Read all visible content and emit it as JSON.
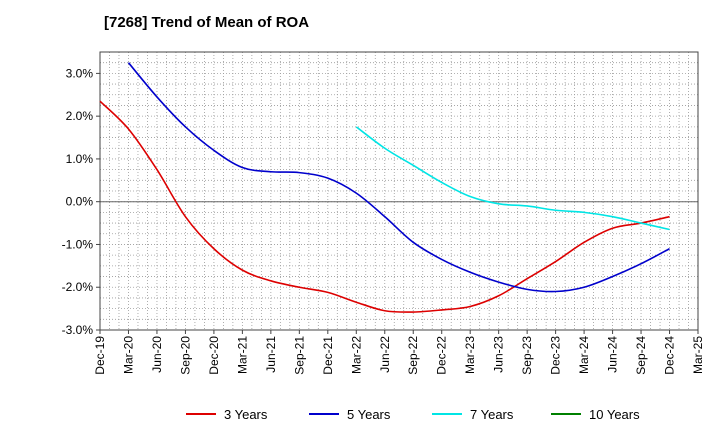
{
  "chart_data": {
    "type": "line",
    "title": "[7268]  Trend of Mean of ROA",
    "xlabel": "",
    "ylabel": "",
    "x": [
      "Dec-19",
      "Mar-20",
      "Jun-20",
      "Sep-20",
      "Dec-20",
      "Mar-21",
      "Jun-21",
      "Sep-21",
      "Dec-21",
      "Mar-22",
      "Jun-22",
      "Sep-22",
      "Dec-22",
      "Mar-23",
      "Jun-23",
      "Sep-23",
      "Dec-23",
      "Mar-24",
      "Jun-24",
      "Sep-24",
      "Dec-24",
      "Mar-25"
    ],
    "y_ticks": [
      "3.0%",
      "2.0%",
      "1.0%",
      "0.0%",
      "-1.0%",
      "-2.0%",
      "-3.0%"
    ],
    "ylim": [
      -3.0,
      3.5
    ],
    "grid": true,
    "legend_position": "bottom",
    "series": [
      {
        "name": "3 Years",
        "color": "#dd0000",
        "values": [
          2.35,
          1.7,
          0.75,
          -0.35,
          -1.1,
          -1.6,
          -1.85,
          -2.0,
          -2.12,
          -2.35,
          -2.55,
          -2.58,
          -2.53,
          -2.45,
          -2.2,
          -1.8,
          -1.4,
          -0.95,
          -0.62,
          -0.5,
          -0.35,
          null
        ]
      },
      {
        "name": "5 Years",
        "color": "#0000cc",
        "values": [
          null,
          3.25,
          2.45,
          1.75,
          1.2,
          0.8,
          0.7,
          0.68,
          0.55,
          0.2,
          -0.35,
          -0.95,
          -1.35,
          -1.65,
          -1.88,
          -2.05,
          -2.1,
          -2.0,
          -1.75,
          -1.45,
          -1.1,
          null
        ]
      },
      {
        "name": "7 Years",
        "color": "#00e5e5",
        "values": [
          null,
          null,
          null,
          null,
          null,
          null,
          null,
          null,
          null,
          1.75,
          1.25,
          0.85,
          0.45,
          0.12,
          -0.05,
          -0.1,
          -0.2,
          -0.25,
          -0.35,
          -0.5,
          -0.65,
          null
        ]
      },
      {
        "name": "10 Years",
        "color": "#008000",
        "values": [
          null,
          null,
          null,
          null,
          null,
          null,
          null,
          null,
          null,
          null,
          null,
          null,
          null,
          null,
          null,
          null,
          null,
          null,
          null,
          null,
          null,
          null
        ]
      }
    ]
  }
}
